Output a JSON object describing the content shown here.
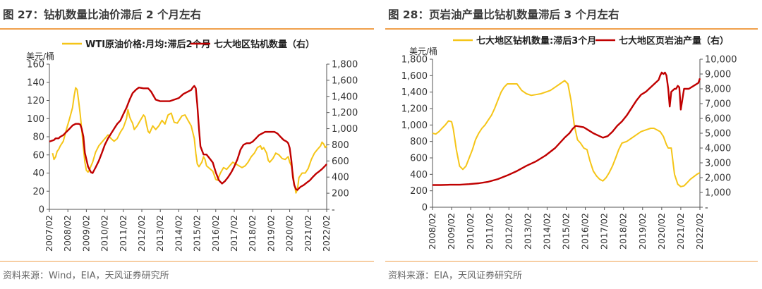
{
  "panels": [
    {
      "title": "图 27：钻机数量比油价滞后 2 个月左右",
      "source": "资料来源：Wind，EIA，天风证券研究所"
    },
    {
      "title": "图 28：页岩油产量比钻机数量滞后 3 个月左右",
      "source": "资料来源：EIA，天风证券研究所"
    }
  ],
  "chart_data": [
    {
      "type": "line",
      "left_axis_unit": "美元/桶",
      "ylim_left": [
        0,
        160
      ],
      "yticks_left": [
        "0",
        "20",
        "40",
        "60",
        "80",
        "100",
        "120",
        "140",
        "160"
      ],
      "ylim_right": [
        0,
        1800
      ],
      "yticks_right": [
        "-",
        "200",
        "400",
        "600",
        "800",
        "1,000",
        "1,200",
        "1,400",
        "1,600",
        "1,800"
      ],
      "x_range": [
        2007.08,
        2022.08
      ],
      "xticks": [
        "2007/02",
        "2008/02",
        "2009/02",
        "2010/02",
        "2011/02",
        "2012/02",
        "2013/02",
        "2014/02",
        "2015/02",
        "2016/02",
        "2017/02",
        "2018/02",
        "2019/02",
        "2020/02",
        "2021/02",
        "2022/02"
      ],
      "legend_position": "top",
      "colors": {
        "series1": "#f5c518",
        "series2": "#c00000"
      },
      "series": [
        {
          "name": "WTI原油价格:月均:滞后2个月",
          "axis": "left",
          "x": [
            2007.25,
            2007.33,
            2007.42,
            2007.5,
            2007.58,
            2007.67,
            2007.83,
            2008.0,
            2008.17,
            2008.33,
            2008.42,
            2008.5,
            2008.58,
            2008.67,
            2008.75,
            2008.83,
            2008.92,
            2009.0,
            2009.08,
            2009.17,
            2009.25,
            2009.42,
            2009.58,
            2009.75,
            2009.92,
            2010.08,
            2010.25,
            2010.42,
            2010.58,
            2010.75,
            2010.92,
            2011.08,
            2011.25,
            2011.33,
            2011.42,
            2011.5,
            2011.58,
            2011.67,
            2011.83,
            2012.0,
            2012.17,
            2012.25,
            2012.33,
            2012.42,
            2012.5,
            2012.67,
            2012.83,
            2013.0,
            2013.17,
            2013.33,
            2013.5,
            2013.67,
            2013.83,
            2014.0,
            2014.25,
            2014.42,
            2014.58,
            2014.75,
            2014.92,
            2015.0,
            2015.08,
            2015.17,
            2015.33,
            2015.42,
            2015.5,
            2015.58,
            2015.75,
            2015.92,
            2016.08,
            2016.17,
            2016.33,
            2016.5,
            2016.67,
            2016.83,
            2017.0,
            2017.17,
            2017.33,
            2017.5,
            2017.67,
            2017.83,
            2018.0,
            2018.17,
            2018.33,
            2018.5,
            2018.58,
            2018.67,
            2018.83,
            2018.92,
            2019.0,
            2019.17,
            2019.33,
            2019.5,
            2019.67,
            2019.83,
            2020.0,
            2020.08,
            2020.17,
            2020.25,
            2020.33,
            2020.42,
            2020.5,
            2020.58,
            2020.75,
            2020.92,
            2021.08,
            2021.25,
            2021.42,
            2021.58,
            2021.75,
            2021.83,
            2021.92,
            2022.0,
            2022.08
          ],
          "values": [
            62,
            55,
            58,
            64,
            66,
            70,
            75,
            88,
            100,
            112,
            125,
            134,
            132,
            118,
            104,
            88,
            68,
            52,
            43,
            41,
            44,
            52,
            63,
            70,
            74,
            78,
            82,
            78,
            75,
            78,
            85,
            90,
            100,
            110,
            102,
            98,
            95,
            88,
            92,
            98,
            104,
            102,
            94,
            86,
            84,
            92,
            88,
            92,
            98,
            94,
            104,
            106,
            96,
            95,
            103,
            104,
            98,
            92,
            78,
            62,
            50,
            47,
            52,
            58,
            55,
            48,
            45,
            42,
            33,
            32,
            40,
            46,
            44,
            48,
            52,
            50,
            48,
            46,
            48,
            52,
            58,
            62,
            68,
            70,
            66,
            68,
            62,
            54,
            52,
            56,
            62,
            60,
            56,
            55,
            58,
            52,
            48,
            40,
            28,
            18,
            22,
            35,
            40,
            40,
            45,
            55,
            62,
            66,
            70,
            74,
            72,
            68,
            70
          ]
        },
        {
          "name": "七大地区钻机数量（右）",
          "axis": "right",
          "x": [
            2007.08,
            2007.33,
            2007.42,
            2007.58,
            2007.67,
            2007.83,
            2008.0,
            2008.17,
            2008.33,
            2008.5,
            2008.67,
            2008.75,
            2008.83,
            2008.92,
            2009.0,
            2009.17,
            2009.33,
            2009.42,
            2009.58,
            2009.75,
            2009.92,
            2010.08,
            2010.25,
            2010.42,
            2010.58,
            2010.75,
            2010.92,
            2011.08,
            2011.25,
            2011.42,
            2011.58,
            2011.75,
            2011.92,
            2012.17,
            2012.42,
            2012.58,
            2012.83,
            2013.08,
            2013.33,
            2013.58,
            2013.83,
            2014.08,
            2014.33,
            2014.58,
            2014.75,
            2014.83,
            2014.92,
            2015.0,
            2015.08,
            2015.17,
            2015.25,
            2015.42,
            2015.58,
            2015.75,
            2015.92,
            2016.08,
            2016.25,
            2016.42,
            2016.58,
            2016.75,
            2016.92,
            2017.08,
            2017.25,
            2017.42,
            2017.58,
            2017.75,
            2017.92,
            2018.08,
            2018.25,
            2018.42,
            2018.58,
            2018.75,
            2018.92,
            2019.08,
            2019.25,
            2019.42,
            2019.58,
            2019.75,
            2019.92,
            2020.0,
            2020.08,
            2020.17,
            2020.25,
            2020.33,
            2020.42,
            2020.5,
            2020.58,
            2020.67,
            2020.83,
            2021.0,
            2021.17,
            2021.33,
            2021.5,
            2021.67,
            2021.83,
            2022.0,
            2022.08
          ],
          "values": [
            840,
            860,
            880,
            880,
            900,
            920,
            960,
            1000,
            1040,
            1060,
            1060,
            1050,
            1000,
            900,
            700,
            530,
            460,
            450,
            520,
            600,
            700,
            800,
            880,
            940,
            1000,
            1060,
            1100,
            1180,
            1260,
            1360,
            1440,
            1480,
            1510,
            1500,
            1500,
            1460,
            1360,
            1340,
            1340,
            1340,
            1360,
            1380,
            1430,
            1460,
            1480,
            1510,
            1530,
            1500,
            1300,
            1000,
            780,
            680,
            680,
            630,
            580,
            460,
            360,
            320,
            350,
            400,
            460,
            530,
            620,
            740,
            800,
            820,
            820,
            840,
            880,
            920,
            940,
            960,
            960,
            960,
            960,
            940,
            900,
            860,
            840,
            820,
            760,
            600,
            400,
            300,
            250,
            240,
            260,
            280,
            300,
            330,
            360,
            400,
            440,
            470,
            500,
            540,
            560
          ]
        }
      ]
    },
    {
      "type": "line",
      "left_axis_unit": "美元/桶",
      "ylim_left": [
        0,
        1800
      ],
      "yticks_left": [
        "0",
        "200",
        "400",
        "600",
        "800",
        "1,000",
        "1,200",
        "1,400",
        "1,600",
        "1,800"
      ],
      "ylim_right": [
        0,
        10000
      ],
      "yticks_right": [
        "-",
        "1,000",
        "2,000",
        "3,000",
        "4,000",
        "5,000",
        "6,000",
        "7,000",
        "8,000",
        "9,000",
        "10,000"
      ],
      "x_range": [
        2008.08,
        2022.08
      ],
      "xticks": [
        "2008/02",
        "2009/02",
        "2010/02",
        "2011/02",
        "2012/02",
        "2013/02",
        "2014/02",
        "2015/02",
        "2016/02",
        "2017/02",
        "2018/02",
        "2019/02",
        "2020/02",
        "2021/02",
        "2022/02"
      ],
      "legend_position": "top",
      "colors": {
        "series1": "#f5c518",
        "series2": "#c00000"
      },
      "series": [
        {
          "name": "七大地区钻机数量:滞后3个月",
          "axis": "left",
          "x": [
            2008.08,
            2008.25,
            2008.42,
            2008.58,
            2008.75,
            2008.92,
            2009.08,
            2009.17,
            2009.33,
            2009.5,
            2009.67,
            2009.83,
            2010.0,
            2010.17,
            2010.33,
            2010.5,
            2010.67,
            2010.83,
            2011.0,
            2011.17,
            2011.33,
            2011.5,
            2011.67,
            2011.83,
            2012.0,
            2012.25,
            2012.5,
            2012.75,
            2013.0,
            2013.25,
            2013.5,
            2013.75,
            2014.0,
            2014.25,
            2014.5,
            2014.75,
            2015.0,
            2015.17,
            2015.33,
            2015.5,
            2015.67,
            2015.83,
            2016.0,
            2016.17,
            2016.33,
            2016.5,
            2016.67,
            2016.83,
            2017.0,
            2017.17,
            2017.33,
            2017.5,
            2017.67,
            2017.83,
            2018.0,
            2018.25,
            2018.5,
            2018.75,
            2019.0,
            2019.25,
            2019.5,
            2019.67,
            2019.83,
            2020.0,
            2020.17,
            2020.33,
            2020.42,
            2020.58,
            2020.75,
            2020.92,
            2021.08,
            2021.25,
            2021.42,
            2021.58,
            2021.75,
            2021.92,
            2022.08
          ],
          "values": [
            900,
            890,
            920,
            960,
            1000,
            1050,
            1040,
            950,
            700,
            500,
            460,
            500,
            600,
            700,
            820,
            900,
            960,
            1000,
            1060,
            1120,
            1200,
            1300,
            1400,
            1460,
            1500,
            1500,
            1500,
            1420,
            1380,
            1360,
            1370,
            1380,
            1400,
            1420,
            1460,
            1500,
            1540,
            1500,
            1300,
            1000,
            820,
            780,
            720,
            700,
            560,
            440,
            380,
            340,
            320,
            360,
            420,
            500,
            600,
            700,
            780,
            800,
            840,
            880,
            920,
            940,
            960,
            960,
            940,
            920,
            860,
            760,
            720,
            720,
            400,
            280,
            250,
            260,
            300,
            340,
            370,
            400,
            420
          ]
        },
        {
          "name": "七大地区页岩油产量（右）",
          "axis": "right",
          "x": [
            2008.08,
            2008.5,
            2009.0,
            2009.5,
            2010.0,
            2010.5,
            2011.0,
            2011.5,
            2012.0,
            2012.5,
            2013.0,
            2013.5,
            2014.0,
            2014.5,
            2015.0,
            2015.25,
            2015.42,
            2015.58,
            2016.0,
            2016.25,
            2016.5,
            2016.75,
            2017.0,
            2017.25,
            2017.5,
            2017.75,
            2018.0,
            2018.25,
            2018.5,
            2018.75,
            2019.0,
            2019.25,
            2019.5,
            2019.75,
            2019.92,
            2020.0,
            2020.08,
            2020.17,
            2020.25,
            2020.33,
            2020.42,
            2020.5,
            2020.58,
            2020.75,
            2020.83,
            2020.92,
            2021.0,
            2021.08,
            2021.25,
            2021.5,
            2021.75,
            2022.0,
            2022.08
          ],
          "values": [
            1500,
            1500,
            1520,
            1520,
            1560,
            1620,
            1720,
            1900,
            2150,
            2450,
            2800,
            3100,
            3500,
            4000,
            4700,
            5000,
            5300,
            5500,
            5400,
            5200,
            5000,
            4850,
            4700,
            4800,
            5100,
            5500,
            5800,
            6200,
            6700,
            7200,
            7600,
            7800,
            8100,
            8400,
            8600,
            8900,
            9100,
            9000,
            9100,
            8900,
            8000,
            6800,
            7800,
            8000,
            8000,
            8200,
            8100,
            6600,
            8000,
            8000,
            8200,
            8400,
            8700
          ]
        }
      ]
    }
  ]
}
